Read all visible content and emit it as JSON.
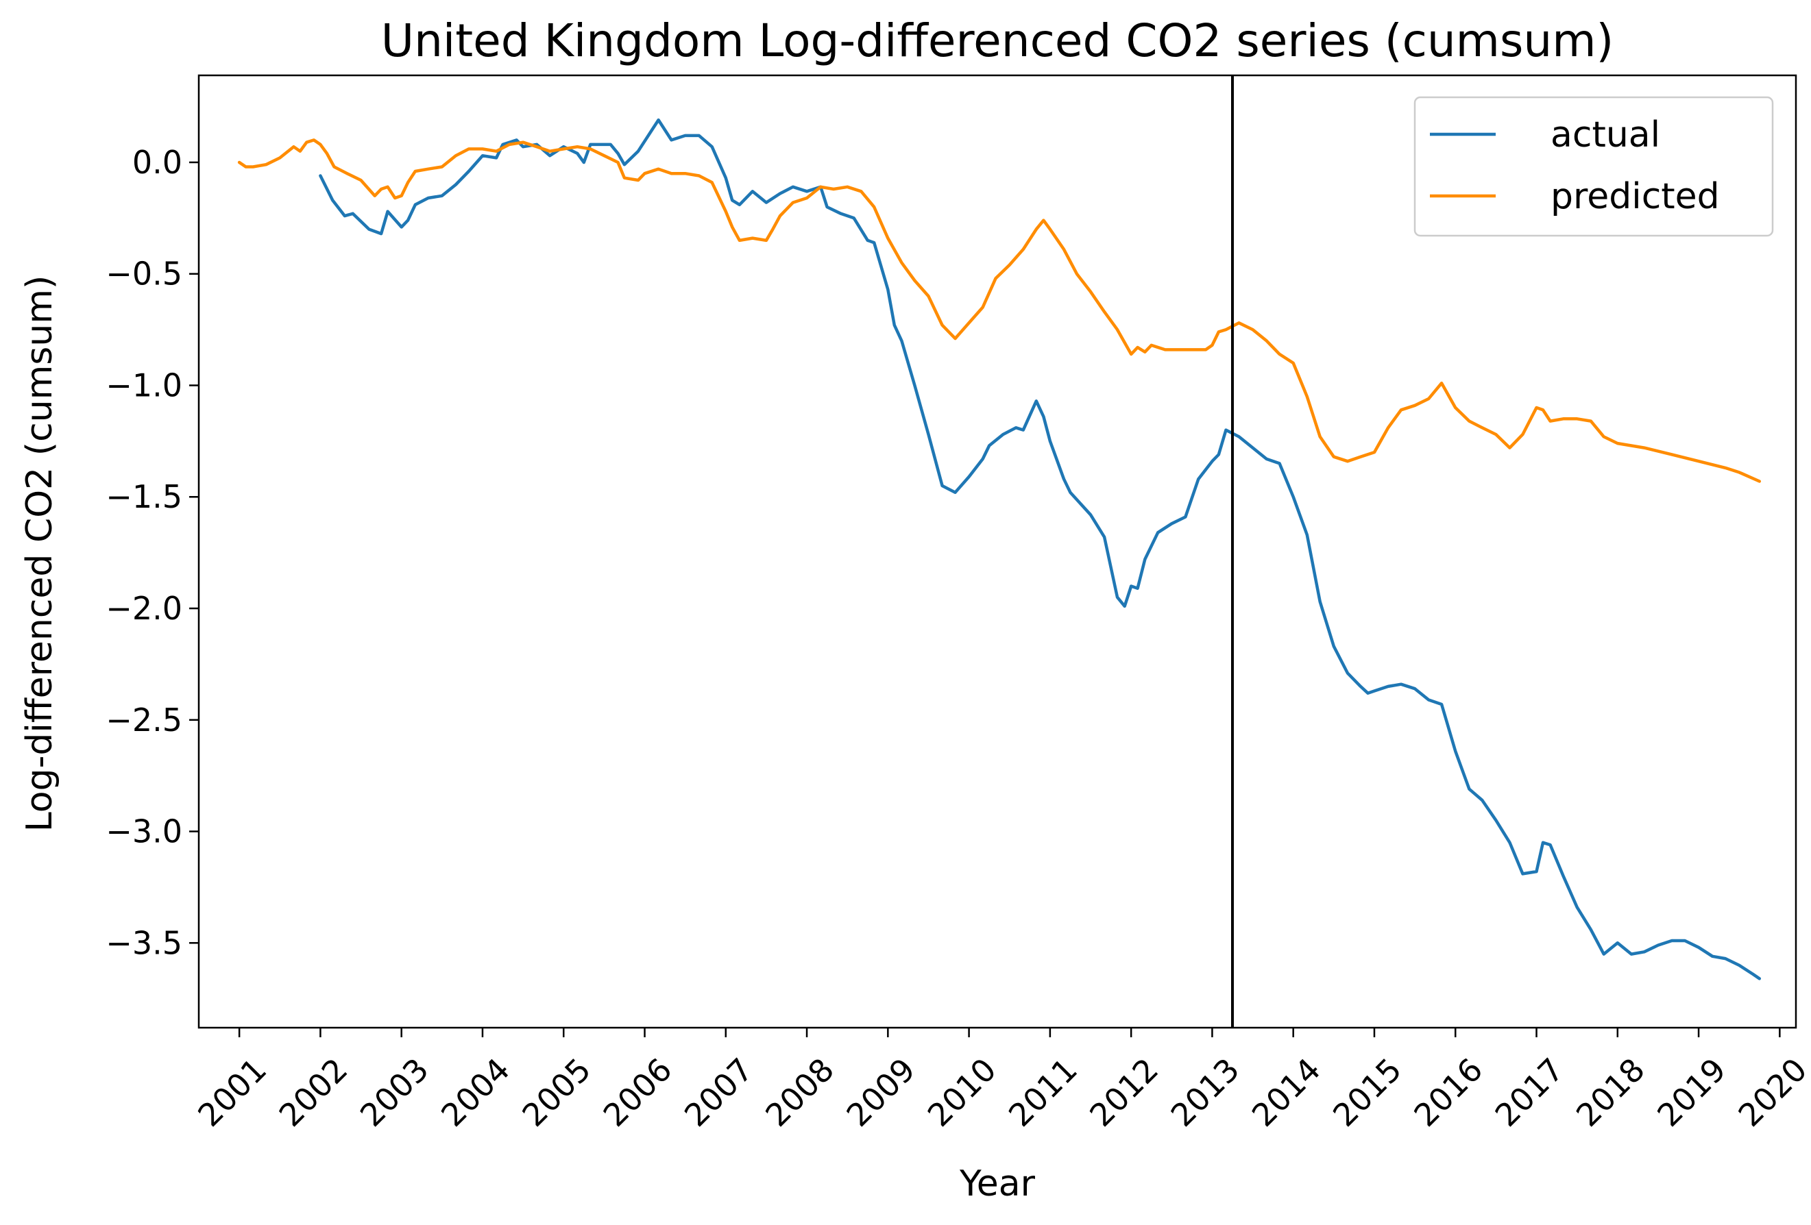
{
  "chart_data": {
    "type": "line",
    "title": "United Kingdom Log-differenced CO2 series (cumsum)",
    "xlabel": "Year",
    "ylabel": "Log-differenced CO2 (cumsum)",
    "xlim": [
      2000.5,
      2020.2
    ],
    "ylim": [
      -3.88,
      0.39
    ],
    "xticks": [
      2001,
      2002,
      2003,
      2004,
      2005,
      2006,
      2007,
      2008,
      2009,
      2010,
      2011,
      2012,
      2013,
      2014,
      2015,
      2016,
      2017,
      2018,
      2019,
      2020
    ],
    "xtick_labels": [
      "2001",
      "2002",
      "2003",
      "2004",
      "2005",
      "2006",
      "2007",
      "2008",
      "2009",
      "2010",
      "2011",
      "2012",
      "2013",
      "2014",
      "2015",
      "2016",
      "2017",
      "2018",
      "2019",
      "2020"
    ],
    "yticks": [
      0.0,
      -0.5,
      -1.0,
      -1.5,
      -2.0,
      -2.5,
      -3.0,
      -3.5
    ],
    "ytick_labels": [
      "0.0",
      "−0.5",
      "−1.0",
      "−1.5",
      "−2.0",
      "−2.5",
      "−3.0",
      "−3.5"
    ],
    "vline_x": 2013.25,
    "grid": false,
    "legend_position": "top-right",
    "series": [
      {
        "name": "actual",
        "color": "#1f77b4",
        "points": [
          [
            2002.0,
            -0.06
          ],
          [
            2002.15,
            -0.17
          ],
          [
            2002.3,
            -0.24
          ],
          [
            2002.4,
            -0.23
          ],
          [
            2002.6,
            -0.3
          ],
          [
            2002.75,
            -0.32
          ],
          [
            2002.83,
            -0.22
          ],
          [
            2003.0,
            -0.29
          ],
          [
            2003.08,
            -0.26
          ],
          [
            2003.17,
            -0.19
          ],
          [
            2003.33,
            -0.16
          ],
          [
            2003.5,
            -0.15
          ],
          [
            2003.67,
            -0.1
          ],
          [
            2003.83,
            -0.04
          ],
          [
            2004.0,
            0.03
          ],
          [
            2004.17,
            0.02
          ],
          [
            2004.25,
            0.08
          ],
          [
            2004.42,
            0.1
          ],
          [
            2004.5,
            0.07
          ],
          [
            2004.67,
            0.08
          ],
          [
            2004.83,
            0.03
          ],
          [
            2005.0,
            0.07
          ],
          [
            2005.17,
            0.04
          ],
          [
            2005.25,
            0.0
          ],
          [
            2005.33,
            0.08
          ],
          [
            2005.58,
            0.08
          ],
          [
            2005.67,
            0.04
          ],
          [
            2005.75,
            -0.01
          ],
          [
            2005.92,
            0.05
          ],
          [
            2006.08,
            0.14
          ],
          [
            2006.17,
            0.19
          ],
          [
            2006.33,
            0.1
          ],
          [
            2006.5,
            0.12
          ],
          [
            2006.67,
            0.12
          ],
          [
            2006.83,
            0.07
          ],
          [
            2007.0,
            -0.07
          ],
          [
            2007.08,
            -0.17
          ],
          [
            2007.17,
            -0.19
          ],
          [
            2007.33,
            -0.13
          ],
          [
            2007.5,
            -0.18
          ],
          [
            2007.67,
            -0.14
          ],
          [
            2007.83,
            -0.11
          ],
          [
            2008.0,
            -0.13
          ],
          [
            2008.17,
            -0.11
          ],
          [
            2008.25,
            -0.2
          ],
          [
            2008.42,
            -0.23
          ],
          [
            2008.58,
            -0.25
          ],
          [
            2008.75,
            -0.35
          ],
          [
            2008.83,
            -0.36
          ],
          [
            2009.0,
            -0.57
          ],
          [
            2009.08,
            -0.73
          ],
          [
            2009.17,
            -0.8
          ],
          [
            2009.33,
            -1.0
          ],
          [
            2009.5,
            -1.22
          ],
          [
            2009.67,
            -1.45
          ],
          [
            2009.83,
            -1.48
          ],
          [
            2010.0,
            -1.41
          ],
          [
            2010.17,
            -1.33
          ],
          [
            2010.25,
            -1.27
          ],
          [
            2010.42,
            -1.22
          ],
          [
            2010.58,
            -1.19
          ],
          [
            2010.67,
            -1.2
          ],
          [
            2010.83,
            -1.07
          ],
          [
            2010.92,
            -1.14
          ],
          [
            2011.0,
            -1.25
          ],
          [
            2011.17,
            -1.42
          ],
          [
            2011.25,
            -1.48
          ],
          [
            2011.5,
            -1.58
          ],
          [
            2011.67,
            -1.68
          ],
          [
            2011.83,
            -1.95
          ],
          [
            2011.92,
            -1.99
          ],
          [
            2012.0,
            -1.9
          ],
          [
            2012.08,
            -1.91
          ],
          [
            2012.17,
            -1.78
          ],
          [
            2012.33,
            -1.66
          ],
          [
            2012.5,
            -1.62
          ],
          [
            2012.67,
            -1.59
          ],
          [
            2012.83,
            -1.42
          ],
          [
            2013.0,
            -1.34
          ],
          [
            2013.08,
            -1.31
          ],
          [
            2013.17,
            -1.2
          ],
          [
            2013.33,
            -1.23
          ],
          [
            2013.5,
            -1.28
          ],
          [
            2013.67,
            -1.33
          ],
          [
            2013.83,
            -1.35
          ],
          [
            2014.0,
            -1.5
          ],
          [
            2014.17,
            -1.67
          ],
          [
            2014.33,
            -1.97
          ],
          [
            2014.5,
            -2.17
          ],
          [
            2014.67,
            -2.29
          ],
          [
            2014.83,
            -2.35
          ],
          [
            2014.92,
            -2.38
          ],
          [
            2015.0,
            -2.37
          ],
          [
            2015.17,
            -2.35
          ],
          [
            2015.33,
            -2.34
          ],
          [
            2015.5,
            -2.36
          ],
          [
            2015.67,
            -2.41
          ],
          [
            2015.83,
            -2.43
          ],
          [
            2016.0,
            -2.64
          ],
          [
            2016.17,
            -2.81
          ],
          [
            2016.33,
            -2.86
          ],
          [
            2016.5,
            -2.95
          ],
          [
            2016.67,
            -3.05
          ],
          [
            2016.83,
            -3.19
          ],
          [
            2017.0,
            -3.18
          ],
          [
            2017.08,
            -3.05
          ],
          [
            2017.17,
            -3.06
          ],
          [
            2017.33,
            -3.2
          ],
          [
            2017.5,
            -3.34
          ],
          [
            2017.67,
            -3.44
          ],
          [
            2017.83,
            -3.55
          ],
          [
            2018.0,
            -3.5
          ],
          [
            2018.17,
            -3.55
          ],
          [
            2018.33,
            -3.54
          ],
          [
            2018.5,
            -3.51
          ],
          [
            2018.67,
            -3.49
          ],
          [
            2018.83,
            -3.49
          ],
          [
            2019.0,
            -3.52
          ],
          [
            2019.17,
            -3.56
          ],
          [
            2019.33,
            -3.57
          ],
          [
            2019.5,
            -3.6
          ],
          [
            2019.67,
            -3.64
          ],
          [
            2019.75,
            -3.66
          ]
        ]
      },
      {
        "name": "predicted",
        "color": "#ff8c00",
        "points": [
          [
            2001.0,
            0.0
          ],
          [
            2001.08,
            -0.02
          ],
          [
            2001.17,
            -0.02
          ],
          [
            2001.33,
            -0.01
          ],
          [
            2001.5,
            0.02
          ],
          [
            2001.67,
            0.07
          ],
          [
            2001.75,
            0.05
          ],
          [
            2001.83,
            0.09
          ],
          [
            2001.92,
            0.1
          ],
          [
            2002.0,
            0.08
          ],
          [
            2002.08,
            0.04
          ],
          [
            2002.17,
            -0.02
          ],
          [
            2002.33,
            -0.05
          ],
          [
            2002.5,
            -0.08
          ],
          [
            2002.67,
            -0.15
          ],
          [
            2002.75,
            -0.12
          ],
          [
            2002.83,
            -0.11
          ],
          [
            2002.92,
            -0.16
          ],
          [
            2003.0,
            -0.15
          ],
          [
            2003.08,
            -0.09
          ],
          [
            2003.17,
            -0.04
          ],
          [
            2003.33,
            -0.03
          ],
          [
            2003.5,
            -0.02
          ],
          [
            2003.67,
            0.03
          ],
          [
            2003.83,
            0.06
          ],
          [
            2004.0,
            0.06
          ],
          [
            2004.17,
            0.05
          ],
          [
            2004.33,
            0.08
          ],
          [
            2004.5,
            0.09
          ],
          [
            2004.67,
            0.07
          ],
          [
            2004.83,
            0.05
          ],
          [
            2005.0,
            0.06
          ],
          [
            2005.17,
            0.07
          ],
          [
            2005.33,
            0.06
          ],
          [
            2005.5,
            0.03
          ],
          [
            2005.67,
            0.0
          ],
          [
            2005.75,
            -0.07
          ],
          [
            2005.92,
            -0.08
          ],
          [
            2006.0,
            -0.05
          ],
          [
            2006.17,
            -0.03
          ],
          [
            2006.33,
            -0.05
          ],
          [
            2006.5,
            -0.05
          ],
          [
            2006.67,
            -0.06
          ],
          [
            2006.83,
            -0.09
          ],
          [
            2007.0,
            -0.22
          ],
          [
            2007.08,
            -0.29
          ],
          [
            2007.17,
            -0.35
          ],
          [
            2007.33,
            -0.34
          ],
          [
            2007.5,
            -0.35
          ],
          [
            2007.58,
            -0.3
          ],
          [
            2007.67,
            -0.24
          ],
          [
            2007.83,
            -0.18
          ],
          [
            2008.0,
            -0.16
          ],
          [
            2008.17,
            -0.11
          ],
          [
            2008.33,
            -0.12
          ],
          [
            2008.5,
            -0.11
          ],
          [
            2008.67,
            -0.13
          ],
          [
            2008.83,
            -0.2
          ],
          [
            2009.0,
            -0.34
          ],
          [
            2009.17,
            -0.45
          ],
          [
            2009.33,
            -0.53
          ],
          [
            2009.5,
            -0.6
          ],
          [
            2009.67,
            -0.73
          ],
          [
            2009.83,
            -0.79
          ],
          [
            2010.0,
            -0.72
          ],
          [
            2010.17,
            -0.65
          ],
          [
            2010.33,
            -0.52
          ],
          [
            2010.5,
            -0.46
          ],
          [
            2010.67,
            -0.39
          ],
          [
            2010.83,
            -0.3
          ],
          [
            2010.92,
            -0.26
          ],
          [
            2011.0,
            -0.3
          ],
          [
            2011.17,
            -0.39
          ],
          [
            2011.33,
            -0.5
          ],
          [
            2011.5,
            -0.58
          ],
          [
            2011.67,
            -0.67
          ],
          [
            2011.83,
            -0.75
          ],
          [
            2012.0,
            -0.86
          ],
          [
            2012.08,
            -0.83
          ],
          [
            2012.17,
            -0.85
          ],
          [
            2012.25,
            -0.82
          ],
          [
            2012.42,
            -0.84
          ],
          [
            2012.58,
            -0.84
          ],
          [
            2012.75,
            -0.84
          ],
          [
            2012.92,
            -0.84
          ],
          [
            2013.0,
            -0.82
          ],
          [
            2013.08,
            -0.76
          ],
          [
            2013.17,
            -0.75
          ],
          [
            2013.33,
            -0.72
          ],
          [
            2013.5,
            -0.75
          ],
          [
            2013.67,
            -0.8
          ],
          [
            2013.83,
            -0.86
          ],
          [
            2014.0,
            -0.9
          ],
          [
            2014.17,
            -1.05
          ],
          [
            2014.33,
            -1.23
          ],
          [
            2014.5,
            -1.32
          ],
          [
            2014.67,
            -1.34
          ],
          [
            2014.83,
            -1.32
          ],
          [
            2015.0,
            -1.3
          ],
          [
            2015.17,
            -1.19
          ],
          [
            2015.33,
            -1.11
          ],
          [
            2015.5,
            -1.09
          ],
          [
            2015.67,
            -1.06
          ],
          [
            2015.83,
            -0.99
          ],
          [
            2016.0,
            -1.1
          ],
          [
            2016.17,
            -1.16
          ],
          [
            2016.33,
            -1.19
          ],
          [
            2016.5,
            -1.22
          ],
          [
            2016.67,
            -1.28
          ],
          [
            2016.83,
            -1.22
          ],
          [
            2017.0,
            -1.1
          ],
          [
            2017.08,
            -1.11
          ],
          [
            2017.17,
            -1.16
          ],
          [
            2017.33,
            -1.15
          ],
          [
            2017.5,
            -1.15
          ],
          [
            2017.67,
            -1.16
          ],
          [
            2017.83,
            -1.23
          ],
          [
            2018.0,
            -1.26
          ],
          [
            2018.33,
            -1.28
          ],
          [
            2018.67,
            -1.31
          ],
          [
            2019.0,
            -1.34
          ],
          [
            2019.33,
            -1.37
          ],
          [
            2019.5,
            -1.39
          ],
          [
            2019.75,
            -1.43
          ]
        ]
      }
    ]
  }
}
